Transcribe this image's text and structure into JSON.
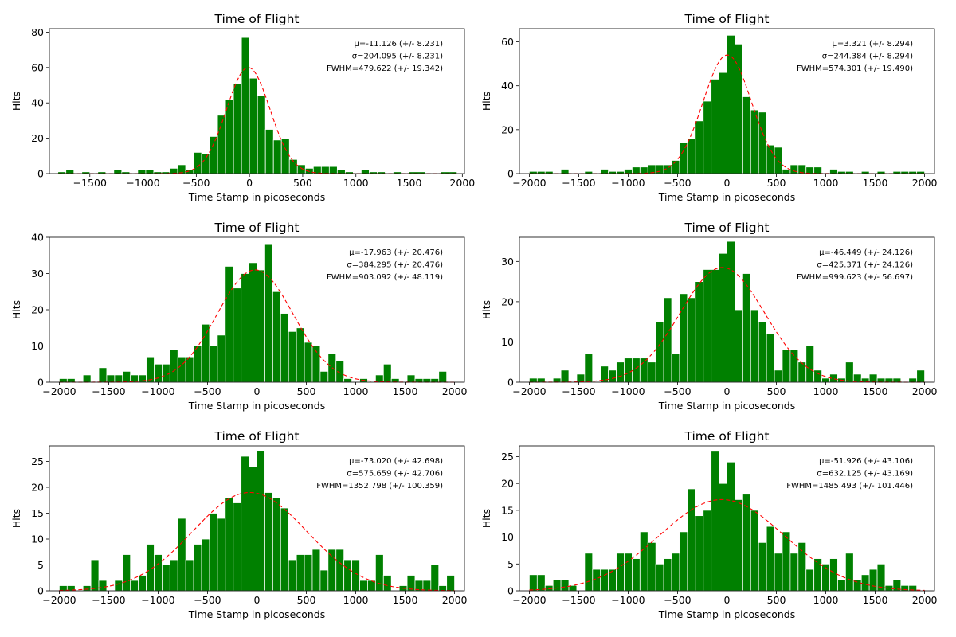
{
  "colors": {
    "bar": "#008000",
    "fit": "#ff0000"
  },
  "chart_data": [
    {
      "type": "bar",
      "title": "Time of Flight",
      "xlabel": "Time Stamp in picoseconds",
      "ylabel": "Hits",
      "xlim": [
        -1880,
        2020
      ],
      "ylim": [
        0,
        82
      ],
      "xticks": [
        -1500,
        -1000,
        -500,
        0,
        500,
        1000,
        1500,
        2000
      ],
      "xtick_labels": [
        "−1500",
        "−1000",
        "−500",
        "0",
        "500",
        "1000",
        "1500",
        "2000"
      ],
      "yticks": [
        0,
        20,
        40,
        60,
        80
      ],
      "ytick_labels": [
        "0",
        "20",
        "40",
        "60",
        "80"
      ],
      "bin_start": -1800,
      "bin_width": 75,
      "values": [
        1,
        2,
        0,
        1,
        0,
        1,
        0,
        2,
        1,
        0,
        2,
        2,
        1,
        1,
        3,
        5,
        2,
        12,
        11,
        21,
        33,
        42,
        51,
        77,
        54,
        44,
        25,
        19,
        20,
        8,
        5,
        3,
        4,
        4,
        4,
        2,
        1,
        0,
        2,
        1,
        1,
        0,
        1,
        0,
        1,
        1,
        0,
        0,
        1,
        1
      ],
      "fit": {
        "mu": -11.126,
        "sigma": 204.095,
        "amplitude": 60
      },
      "annotations": [
        "μ=-11.126 (+/- 8.231)",
        "σ=204.095 (+/- 8.231)",
        "FWHM=479.622 (+/- 19.342)"
      ]
    },
    {
      "type": "bar",
      "title": "Time of Flight",
      "xlabel": "Time Stamp in picoseconds",
      "ylabel": "Hits",
      "xlim": [
        -2100,
        2100
      ],
      "ylim": [
        0,
        66
      ],
      "xticks": [
        -2000,
        -1500,
        -1000,
        -500,
        0,
        500,
        1000,
        1500,
        2000
      ],
      "xtick_labels": [
        "−2000",
        "−1500",
        "−1000",
        "−500",
        "0",
        "500",
        "1000",
        "1500",
        "2000"
      ],
      "yticks": [
        0,
        20,
        40,
        60
      ],
      "ytick_labels": [
        "0",
        "20",
        "40",
        "60"
      ],
      "bin_start": -2000,
      "bin_width": 80,
      "values": [
        1,
        1,
        1,
        0,
        2,
        0,
        0,
        1,
        0,
        2,
        1,
        1,
        2,
        3,
        3,
        4,
        4,
        4,
        6,
        14,
        16,
        24,
        33,
        43,
        46,
        63,
        59,
        35,
        29,
        28,
        13,
        12,
        2,
        4,
        4,
        3,
        3,
        0,
        2,
        1,
        1,
        0,
        1,
        0,
        1,
        0,
        1,
        1,
        1,
        1
      ],
      "fit": {
        "mu": 3.321,
        "sigma": 244.384,
        "amplitude": 54
      },
      "annotations": [
        "μ=3.321 (+/- 8.294)",
        "σ=244.384 (+/- 8.294)",
        "FWHM=574.301 (+/- 19.490)"
      ]
    },
    {
      "type": "bar",
      "title": "Time of Flight",
      "xlabel": "Time Stamp in picoseconds",
      "ylabel": "Hits",
      "xlim": [
        -2100,
        2100
      ],
      "ylim": [
        0,
        40
      ],
      "xticks": [
        -2000,
        -1500,
        -1000,
        -500,
        0,
        500,
        1000,
        1500,
        2000
      ],
      "xtick_labels": [
        "−2000",
        "−1500",
        "−1000",
        "−500",
        "0",
        "500",
        "1000",
        "1500",
        "2000"
      ],
      "yticks": [
        0,
        10,
        20,
        30,
        40
      ],
      "ytick_labels": [
        "0",
        "10",
        "20",
        "30",
        "40"
      ],
      "bin_start": -2000,
      "bin_width": 80,
      "values": [
        1,
        1,
        0,
        2,
        0,
        4,
        2,
        2,
        3,
        2,
        2,
        7,
        5,
        5,
        9,
        7,
        7,
        10,
        16,
        10,
        13,
        32,
        26,
        30,
        33,
        31,
        38,
        25,
        19,
        14,
        15,
        11,
        10,
        3,
        8,
        6,
        1,
        0,
        1,
        0,
        2,
        5,
        1,
        0,
        2,
        1,
        1,
        1,
        3,
        0
      ],
      "fit": {
        "mu": -17.963,
        "sigma": 384.295,
        "amplitude": 31
      },
      "annotations": [
        "μ=-17.963 (+/- 20.476)",
        "σ=384.295 (+/- 20.476)",
        "FWHM=903.092 (+/- 48.119)"
      ]
    },
    {
      "type": "bar",
      "title": "Time of Flight",
      "xlabel": "Time Stamp in picoseconds",
      "ylabel": "Hits",
      "xlim": [
        -2100,
        2100
      ],
      "ylim": [
        0,
        36
      ],
      "xticks": [
        -2000,
        -1500,
        -1000,
        -500,
        0,
        500,
        1000,
        1500,
        2000
      ],
      "xtick_labels": [
        "−2000",
        "−1500",
        "−1000",
        "−500",
        "0",
        "500",
        "1000",
        "1500",
        "2000"
      ],
      "yticks": [
        0,
        10,
        20,
        30
      ],
      "ytick_labels": [
        "0",
        "10",
        "20",
        "30"
      ],
      "bin_start": -2000,
      "bin_width": 80,
      "values": [
        1,
        1,
        0,
        1,
        3,
        0,
        2,
        7,
        0,
        4,
        3,
        5,
        6,
        6,
        6,
        5,
        15,
        21,
        7,
        22,
        21,
        25,
        28,
        28,
        32,
        35,
        18,
        27,
        18,
        15,
        12,
        3,
        8,
        8,
        5,
        9,
        3,
        1,
        2,
        1,
        5,
        2,
        1,
        2,
        1,
        1,
        1,
        0,
        1,
        3
      ],
      "fit": {
        "mu": -46.449,
        "sigma": 425.371,
        "amplitude": 28.5
      },
      "annotations": [
        "μ=-46.449 (+/- 24.126)",
        "σ=425.371 (+/- 24.126)",
        "FWHM=999.623 (+/- 56.697)"
      ]
    },
    {
      "type": "bar",
      "title": "Time of Flight",
      "xlabel": "Time Stamp in picoseconds",
      "ylabel": "Hits",
      "xlim": [
        -2100,
        2100
      ],
      "ylim": [
        0,
        28
      ],
      "xticks": [
        -2000,
        -1500,
        -1000,
        -500,
        0,
        500,
        1000,
        1500,
        2000
      ],
      "xtick_labels": [
        "−2000",
        "−1500",
        "−1000",
        "−500",
        "0",
        "500",
        "1000",
        "1500",
        "2000"
      ],
      "yticks": [
        0,
        5,
        10,
        15,
        20,
        25
      ],
      "ytick_labels": [
        "0",
        "5",
        "10",
        "15",
        "20",
        "25"
      ],
      "bin_start": -2000,
      "bin_width": 80,
      "values": [
        1,
        1,
        0,
        1,
        6,
        2,
        0,
        2,
        7,
        2,
        3,
        9,
        7,
        5,
        6,
        14,
        6,
        9,
        10,
        15,
        14,
        18,
        17,
        26,
        24,
        27,
        19,
        18,
        16,
        6,
        7,
        7,
        8,
        4,
        8,
        8,
        6,
        6,
        2,
        2,
        7,
        3,
        0,
        1,
        3,
        2,
        2,
        5,
        1,
        3
      ],
      "fit": {
        "mu": -73.02,
        "sigma": 575.659,
        "amplitude": 19
      },
      "annotations": [
        "μ=-73.020 (+/- 42.698)",
        "σ=575.659 (+/- 42.706)",
        "FWHM=1352.798 (+/- 100.359)"
      ]
    },
    {
      "type": "bar",
      "title": "Time of Flight",
      "xlabel": "Time Stamp in picoseconds",
      "ylabel": "Hits",
      "xlim": [
        -2100,
        2100
      ],
      "ylim": [
        0,
        27
      ],
      "xticks": [
        -2000,
        -1500,
        -1000,
        -500,
        0,
        500,
        1000,
        1500,
        2000
      ],
      "xtick_labels": [
        "−2000",
        "−1500",
        "−1000",
        "−500",
        "0",
        "500",
        "1000",
        "1500",
        "2000"
      ],
      "yticks": [
        0,
        5,
        10,
        15,
        20,
        25
      ],
      "ytick_labels": [
        "0",
        "5",
        "10",
        "15",
        "20",
        "25"
      ],
      "bin_start": -2000,
      "bin_width": 80,
      "values": [
        3,
        3,
        1,
        2,
        2,
        1,
        0,
        7,
        4,
        4,
        4,
        7,
        7,
        6,
        11,
        9,
        5,
        6,
        7,
        11,
        19,
        14,
        15,
        26,
        20,
        24,
        17,
        18,
        15,
        9,
        12,
        7,
        11,
        7,
        9,
        4,
        6,
        5,
        6,
        2,
        7,
        2,
        3,
        4,
        5,
        1,
        2,
        1,
        1,
        0
      ],
      "fit": {
        "mu": -51.926,
        "sigma": 632.125,
        "amplitude": 17
      },
      "annotations": [
        "μ=-51.926 (+/- 43.106)",
        "σ=632.125 (+/- 43.169)",
        "FWHM=1485.493 (+/- 101.446)"
      ]
    }
  ]
}
